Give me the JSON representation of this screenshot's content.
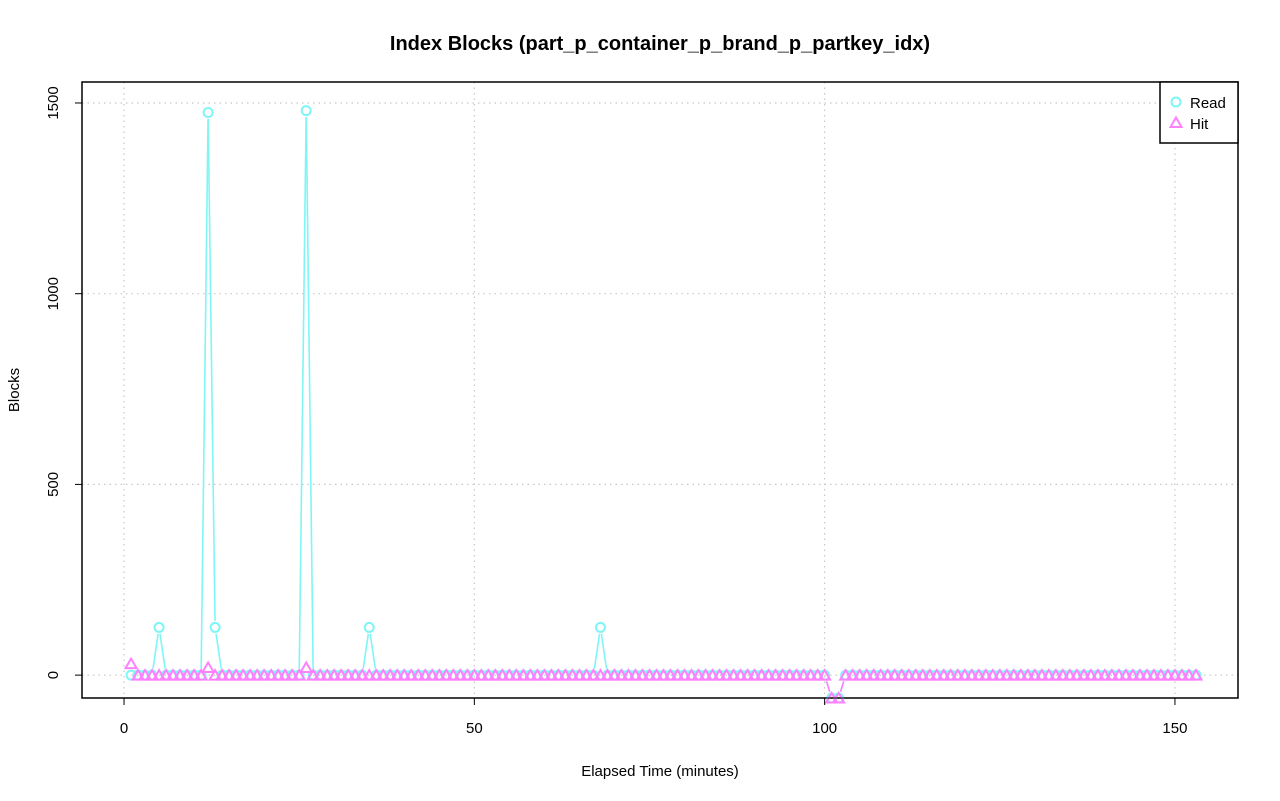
{
  "chart_data": {
    "type": "line",
    "title": "Index Blocks (part_p_container_p_brand_p_partkey_idx)",
    "xlabel": "Elapsed Time (minutes)",
    "ylabel": "Blocks",
    "xlim": [
      -6,
      159
    ],
    "ylim": [
      -60,
      1555
    ],
    "x_ticks": [
      0,
      50,
      100,
      150
    ],
    "y_ticks": [
      0,
      500,
      1000,
      1500
    ],
    "grid": true,
    "legend_position": "top-right",
    "x": [
      1,
      2,
      3,
      4,
      5,
      6,
      7,
      8,
      9,
      10,
      11,
      12,
      13,
      14,
      15,
      16,
      17,
      18,
      19,
      20,
      21,
      22,
      23,
      24,
      25,
      26,
      27,
      28,
      29,
      30,
      31,
      32,
      33,
      34,
      35,
      36,
      37,
      38,
      39,
      40,
      41,
      42,
      43,
      44,
      45,
      46,
      47,
      48,
      49,
      50,
      51,
      52,
      53,
      54,
      55,
      56,
      57,
      58,
      59,
      60,
      61,
      62,
      63,
      64,
      65,
      66,
      67,
      68,
      69,
      70,
      71,
      72,
      73,
      74,
      75,
      76,
      77,
      78,
      79,
      80,
      81,
      82,
      83,
      84,
      85,
      86,
      87,
      88,
      89,
      90,
      91,
      92,
      93,
      94,
      95,
      96,
      97,
      98,
      99,
      100,
      101,
      102,
      103,
      104,
      105,
      106,
      107,
      108,
      109,
      110,
      111,
      112,
      113,
      114,
      115,
      116,
      117,
      118,
      119,
      120,
      121,
      122,
      123,
      124,
      125,
      126,
      127,
      128,
      129,
      130,
      131,
      132,
      133,
      134,
      135,
      136,
      137,
      138,
      139,
      140,
      141,
      142,
      143,
      144,
      145,
      146,
      147,
      148,
      149,
      150,
      151,
      152,
      153
    ],
    "series": [
      {
        "name": "Read",
        "color": "#7ff5f5",
        "marker": "circle",
        "values": [
          0,
          0,
          0,
          0,
          125,
          0,
          0,
          0,
          0,
          0,
          0,
          1475,
          125,
          0,
          0,
          0,
          0,
          0,
          0,
          0,
          0,
          0,
          0,
          0,
          0,
          1480,
          0,
          0,
          0,
          0,
          0,
          0,
          0,
          0,
          125,
          0,
          0,
          0,
          0,
          0,
          0,
          0,
          0,
          0,
          0,
          0,
          0,
          0,
          0,
          0,
          0,
          0,
          0,
          0,
          0,
          0,
          0,
          0,
          0,
          0,
          0,
          0,
          0,
          0,
          0,
          0,
          0,
          125,
          0,
          0,
          0,
          0,
          0,
          0,
          0,
          0,
          0,
          0,
          0,
          0,
          0,
          0,
          0,
          0,
          0,
          0,
          0,
          0,
          0,
          0,
          0,
          0,
          0,
          0,
          0,
          0,
          0,
          0,
          0,
          0,
          -60,
          -60,
          0,
          0,
          0,
          0,
          0,
          0,
          0,
          0,
          0,
          0,
          0,
          0,
          0,
          0,
          0,
          0,
          0,
          0,
          0,
          0,
          0,
          0,
          0,
          0,
          0,
          0,
          0,
          0,
          0,
          0,
          0,
          0,
          0,
          0,
          0,
          0,
          0,
          0,
          0,
          0,
          0,
          0,
          0,
          0,
          0,
          0,
          0,
          0,
          0,
          0,
          0
        ]
      },
      {
        "name": "Hit",
        "color": "#ff80ff",
        "marker": "triangle",
        "values": [
          30,
          0,
          0,
          0,
          0,
          0,
          0,
          0,
          0,
          0,
          0,
          20,
          0,
          0,
          0,
          0,
          0,
          0,
          0,
          0,
          0,
          0,
          0,
          0,
          0,
          20,
          0,
          0,
          0,
          0,
          0,
          0,
          0,
          0,
          0,
          0,
          0,
          0,
          0,
          0,
          0,
          0,
          0,
          0,
          0,
          0,
          0,
          0,
          0,
          0,
          0,
          0,
          0,
          0,
          0,
          0,
          0,
          0,
          0,
          0,
          0,
          0,
          0,
          0,
          0,
          0,
          0,
          0,
          0,
          0,
          0,
          0,
          0,
          0,
          0,
          0,
          0,
          0,
          0,
          0,
          0,
          0,
          0,
          0,
          0,
          0,
          0,
          0,
          0,
          0,
          0,
          0,
          0,
          0,
          0,
          0,
          0,
          0,
          0,
          0,
          -60,
          -60,
          0,
          0,
          0,
          0,
          0,
          0,
          0,
          0,
          0,
          0,
          0,
          0,
          0,
          0,
          0,
          0,
          0,
          0,
          0,
          0,
          0,
          0,
          0,
          0,
          0,
          0,
          0,
          0,
          0,
          0,
          0,
          0,
          0,
          0,
          0,
          0,
          0,
          0,
          0,
          0,
          0,
          0,
          0,
          0,
          0,
          0,
          0,
          0,
          0,
          0,
          0
        ]
      }
    ]
  }
}
